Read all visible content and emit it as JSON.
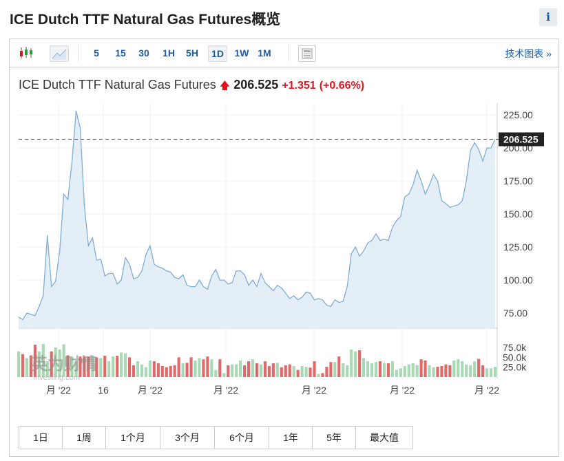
{
  "header": {
    "title": "ICE Dutch TTF Natural Gas Futures概览",
    "info_label": "i"
  },
  "toolbar": {
    "chart_types": [
      "candlestick-icon",
      "area-chart-icon"
    ],
    "intervals": [
      "5",
      "15",
      "30",
      "1H",
      "5H",
      "1D",
      "1W",
      "1M"
    ],
    "selected_interval": "1D",
    "technical_label": "技术图表 »"
  },
  "quote": {
    "name": "ICE Dutch TTF Natural Gas Futures",
    "direction": "up",
    "price": "206.525",
    "change": "+1.351",
    "change_pct": "(+0.66%)",
    "last_label": "206.525"
  },
  "colors": {
    "line": "#7fadd6",
    "fill": "#e4eef7",
    "up_volume": "#a8d8b4",
    "down_volume": "#e06a6a",
    "change": "#e0141e"
  },
  "watermark": "英为财情 Investing.com",
  "chart_data": {
    "type": "area",
    "y_ticks": [
      "225.00",
      "200.00",
      "175.00",
      "150.00",
      "125.00",
      "100.00",
      "75.00"
    ],
    "ylim": [
      60,
      240
    ],
    "x_ticks": [
      "月 '22",
      "16",
      "月 '22",
      "月 '22",
      "月 '22",
      "月 '22",
      "月 '22"
    ],
    "prices": [
      72,
      70,
      75,
      74,
      73,
      80,
      88,
      134,
      95,
      99,
      122,
      165,
      161,
      190,
      228,
      215,
      157,
      126,
      132,
      115,
      116,
      103,
      105,
      105,
      97,
      100,
      117,
      112,
      101,
      102,
      107,
      119,
      126,
      112,
      110,
      109,
      107,
      106,
      102,
      101,
      104,
      96,
      95,
      95,
      100,
      95,
      93,
      103,
      108,
      100,
      100,
      97,
      98,
      107,
      107,
      104,
      96,
      100,
      95,
      105,
      98,
      95,
      92,
      96,
      94,
      90,
      86,
      88,
      85,
      87,
      91,
      90,
      85,
      86,
      85,
      81,
      80,
      85,
      83,
      84,
      95,
      120,
      125,
      118,
      122,
      128,
      130,
      135,
      130,
      131,
      130,
      140,
      145,
      148,
      163,
      165,
      172,
      183,
      175,
      165,
      172,
      180,
      175,
      160,
      158,
      155,
      156,
      157,
      160,
      175,
      198,
      204,
      199,
      190,
      200,
      200,
      206.525
    ],
    "volume_ticks": [
      "75.0k",
      "50.0k",
      "25.0k"
    ],
    "volume_ylim": [
      0,
      90
    ],
    "volumes": [
      65,
      58,
      48,
      55,
      82,
      65,
      84,
      40,
      65,
      75,
      70,
      83,
      55,
      52,
      40,
      52,
      52,
      52,
      55,
      50,
      48,
      54,
      40,
      52,
      54,
      62,
      60,
      50,
      30,
      40,
      32,
      25,
      42,
      40,
      35,
      28,
      25,
      28,
      30,
      50,
      35,
      36,
      50,
      42,
      48,
      45,
      52,
      45,
      18,
      45,
      10,
      30,
      32,
      32,
      42,
      30,
      40,
      45,
      35,
      32,
      40,
      28,
      35,
      36,
      25,
      30,
      32,
      28,
      18,
      28,
      26,
      24,
      40,
      8,
      10,
      26,
      38,
      38,
      52,
      35,
      30,
      70,
      65,
      68,
      48,
      40,
      35,
      38,
      40,
      35,
      35,
      40,
      18,
      22,
      28,
      32,
      35,
      30,
      45,
      42,
      30,
      25,
      26,
      28,
      32,
      30,
      42,
      45,
      40,
      32,
      30,
      40,
      46,
      30,
      22,
      22,
      26
    ]
  },
  "periods": [
    "1日",
    "1周",
    "1个月",
    "3个月",
    "6个月",
    "1年",
    "5年",
    "最大值"
  ]
}
